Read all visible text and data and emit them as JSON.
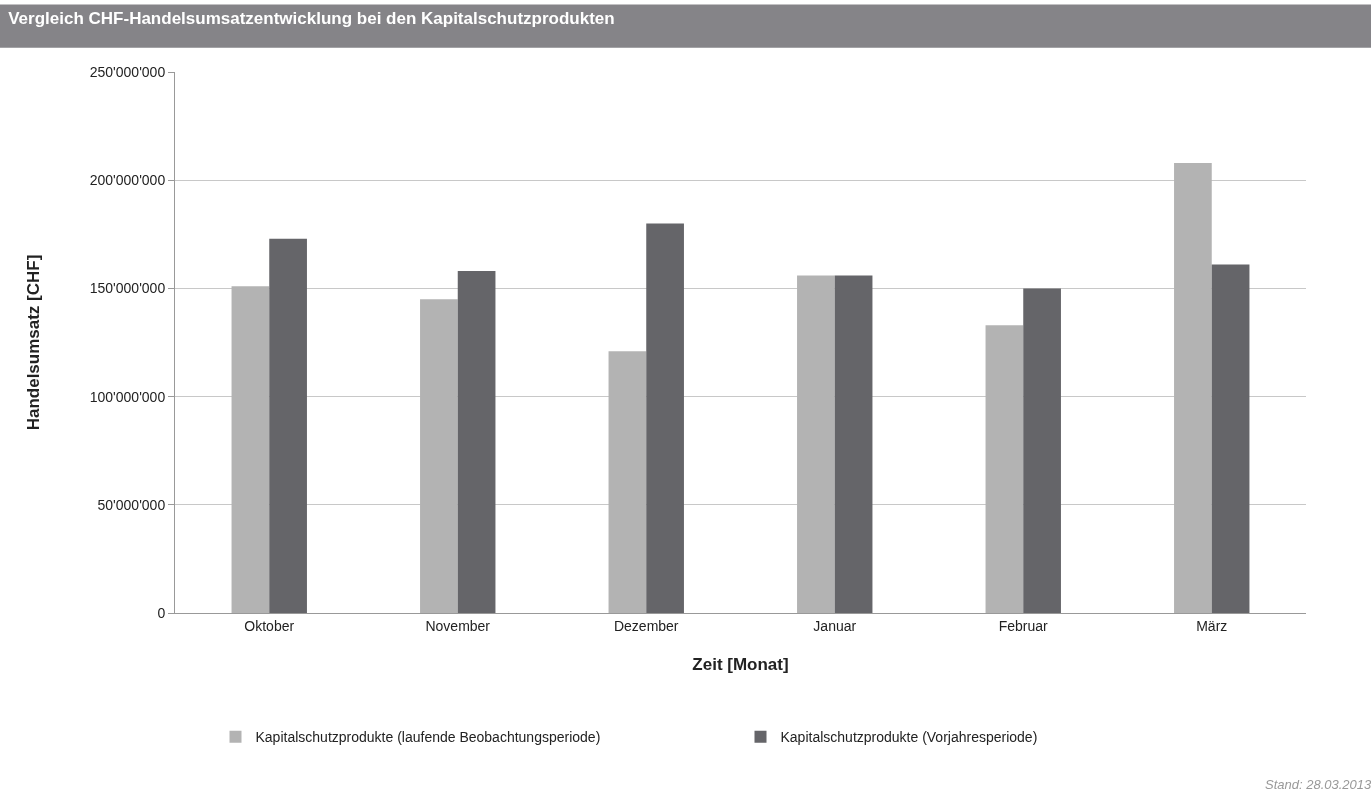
{
  "chart_data": {
    "type": "bar",
    "title": "Vergleich CHF-Handelsumsatzentwicklung bei den Kapitalschutzprodukten",
    "xlabel": "Zeit [Monat]",
    "ylabel": "Handelsumsatz [CHF]",
    "categories": [
      "Oktober",
      "November",
      "Dezember",
      "Januar",
      "Februar",
      "März"
    ],
    "series": [
      {
        "name": "Kapitalschutzprodukte (laufende Beobachtungsperiode)",
        "color": "#b3b3b3",
        "values": [
          151000000,
          145000000,
          121000000,
          156000000,
          133000000,
          208000000
        ]
      },
      {
        "name": "Kapitalschutzprodukte (Vorjahresperiode)",
        "color": "#656569",
        "values": [
          173000000,
          158000000,
          180000000,
          156000000,
          150000000,
          161000000
        ]
      }
    ],
    "ylim": [
      0,
      250000000
    ],
    "yticks": [
      {
        "value": 0,
        "label": "0"
      },
      {
        "value": 50000000,
        "label": "50'000'000"
      },
      {
        "value": 100000000,
        "label": "100'000'000"
      },
      {
        "value": 150000000,
        "label": "150'000'000"
      },
      {
        "value": 200000000,
        "label": "200'000'000"
      },
      {
        "value": 250000000,
        "label": "250'000'000"
      }
    ],
    "grid": "y",
    "legend": "bottom",
    "annotations": [
      "Stand: 28.03.2013"
    ]
  }
}
